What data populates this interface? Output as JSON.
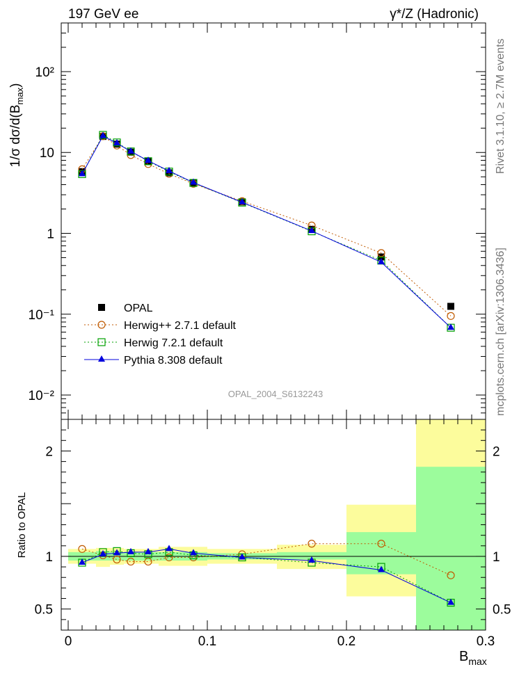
{
  "header": {
    "left": "197 GeV ee",
    "right": "γ*/Z (Hadronic)"
  },
  "side_labels": {
    "rivet": "Rivet 3.1.10, ≥ 2.7M events",
    "mcplots": "mcplots.cern.ch [arXiv:1306.3436]"
  },
  "watermark": "OPAL_2004_S6132243",
  "chart_data": [
    {
      "type": "scatter",
      "panel": "main",
      "ylabel": "1/σ dσ/d(B_max)",
      "yscale": "log",
      "ylim": [
        0.005,
        400
      ],
      "xlim": [
        -0.005,
        0.3
      ],
      "yticks": [
        {
          "value": 0.01,
          "label": "10⁻²"
        },
        {
          "value": 0.1,
          "label": "10⁻¹"
        },
        {
          "value": 1,
          "label": "1"
        },
        {
          "value": 10,
          "label": "10"
        },
        {
          "value": 100,
          "label": "10²"
        }
      ],
      "legend_position": "lower-left",
      "x": [
        0.01,
        0.025,
        0.035,
        0.045,
        0.0575,
        0.0725,
        0.09,
        0.125,
        0.175,
        0.225,
        0.275
      ],
      "series": [
        {
          "name": "OPAL",
          "color": "#000000",
          "marker": "square-filled",
          "line": "none",
          "values": [
            5.8,
            15.8,
            12.7,
            10.1,
            7.7,
            5.6,
            4.2,
            2.45,
            1.12,
            0.51,
            0.125
          ]
        },
        {
          "name": "Herwig++ 2.7.1 default",
          "color": "#c05a00",
          "marker": "circle-open",
          "line": "dotted",
          "values": [
            6.2,
            15.9,
            12.2,
            9.3,
            7.2,
            5.45,
            4.1,
            2.5,
            1.25,
            0.57,
            0.095
          ]
        },
        {
          "name": "Herwig 7.2.1 default",
          "color": "#00a000",
          "marker": "square-open",
          "line": "dotted",
          "values": [
            5.4,
            16.5,
            13.3,
            10.3,
            7.8,
            5.8,
            4.2,
            2.4,
            1.06,
            0.46,
            0.068
          ]
        },
        {
          "name": "Pythia 8.308 default",
          "color": "#0000dd",
          "marker": "triangle-filled",
          "line": "solid",
          "values": [
            5.4,
            16.0,
            13.0,
            10.3,
            7.9,
            5.9,
            4.25,
            2.42,
            1.07,
            0.44,
            0.068
          ]
        }
      ]
    },
    {
      "type": "line",
      "panel": "ratio",
      "ylabel": "Ratio to OPAL",
      "xlabel": "B_max",
      "ylim": [
        0.3,
        2.3
      ],
      "xlim": [
        -0.005,
        0.3
      ],
      "yticks": [
        {
          "value": 0.5,
          "label": "0.5"
        },
        {
          "value": 1,
          "label": "1"
        },
        {
          "value": 2,
          "label": "2"
        }
      ],
      "xticks": [
        {
          "value": 0,
          "label": "0"
        },
        {
          "value": 0.1,
          "label": "0.1"
        },
        {
          "value": 0.2,
          "label": "0.2"
        },
        {
          "value": 0.3,
          "label": "0.3"
        }
      ],
      "bands": {
        "bins": [
          [
            0.0,
            0.02
          ],
          [
            0.02,
            0.03
          ],
          [
            0.03,
            0.04
          ],
          [
            0.04,
            0.05
          ],
          [
            0.05,
            0.065
          ],
          [
            0.065,
            0.08
          ],
          [
            0.08,
            0.1
          ],
          [
            0.1,
            0.15
          ],
          [
            0.15,
            0.2
          ],
          [
            0.2,
            0.25
          ],
          [
            0.25,
            0.3
          ]
        ],
        "inner": [
          [
            0.96,
            1.04
          ],
          [
            0.96,
            1.05
          ],
          [
            0.96,
            1.04
          ],
          [
            0.96,
            1.04
          ],
          [
            0.96,
            1.04
          ],
          [
            0.96,
            1.04
          ],
          [
            0.96,
            1.04
          ],
          [
            0.97,
            1.03
          ],
          [
            0.97,
            1.04
          ],
          [
            0.83,
            1.23
          ],
          [
            0.16,
            1.85
          ]
        ],
        "outer": [
          [
            0.93,
            1.07
          ],
          [
            0.9,
            1.08
          ],
          [
            0.92,
            1.08
          ],
          [
            0.93,
            1.07
          ],
          [
            0.93,
            1.07
          ],
          [
            0.91,
            1.09
          ],
          [
            0.91,
            1.09
          ],
          [
            0.93,
            1.07
          ],
          [
            0.88,
            1.11
          ],
          [
            0.62,
            1.49
          ],
          [
            0.16,
            2.35
          ]
        ],
        "inner_color": "#9cfc9c",
        "outer_color": "#fcfc9c"
      },
      "x": [
        0.01,
        0.025,
        0.035,
        0.045,
        0.0575,
        0.0725,
        0.09,
        0.125,
        0.175,
        0.225,
        0.275
      ],
      "series": [
        {
          "name": "Herwig++ 2.7.1 default",
          "color": "#c05a00",
          "marker": "circle-open",
          "line": "dotted",
          "values": [
            1.07,
            1.01,
            0.97,
            0.95,
            0.95,
            0.99,
            0.99,
            1.02,
            1.12,
            1.12,
            0.82
          ]
        },
        {
          "name": "Herwig 7.2.1 default",
          "color": "#00a000",
          "marker": "square-open",
          "line": "dotted",
          "values": [
            0.94,
            1.04,
            1.05,
            1.03,
            1.02,
            1.04,
            1.01,
            0.99,
            0.94,
            0.9,
            0.56
          ]
        },
        {
          "name": "Pythia 8.308 default",
          "color": "#0000dd",
          "marker": "triangle-filled",
          "line": "solid",
          "values": [
            0.94,
            1.02,
            1.03,
            1.04,
            1.04,
            1.07,
            1.03,
            0.99,
            0.96,
            0.87,
            0.56
          ]
        }
      ]
    }
  ]
}
